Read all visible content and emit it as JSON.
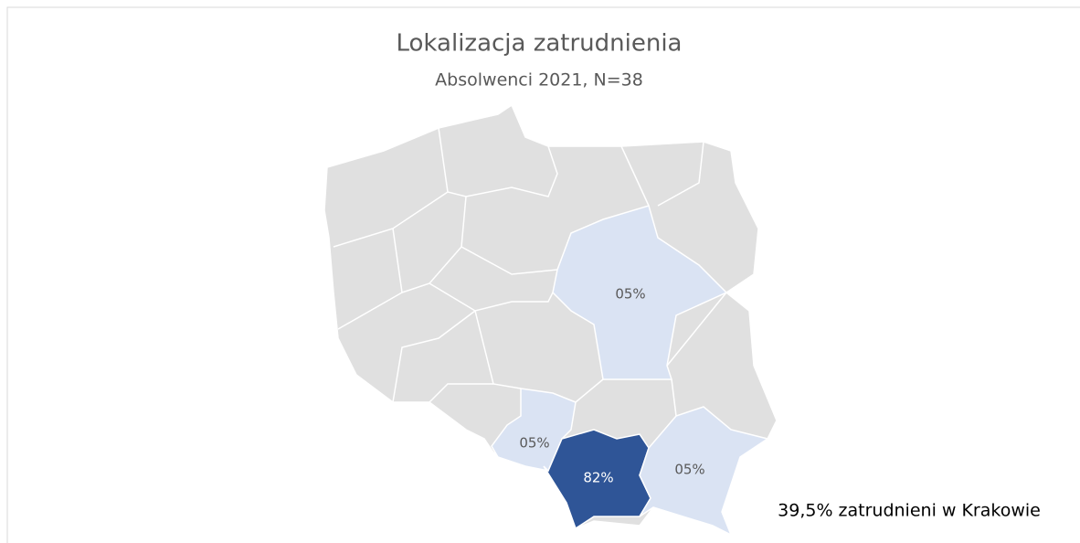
{
  "chart_data": {
    "type": "map",
    "title": "Lokalizacja zatrudnienia",
    "subtitle": "Absolwenci 2021, N=38",
    "values": [
      5,
      5,
      82,
      5
    ],
    "value_labels": [
      "05%",
      "05%",
      "82%",
      "05%"
    ],
    "colors": [
      "#dae3f3",
      "#dae3f3",
      "#2f5597",
      "#dae3f3"
    ],
    "base_color": "#e0e0e0",
    "annotation": "39,5% zatrudnieni w Krakowie"
  }
}
